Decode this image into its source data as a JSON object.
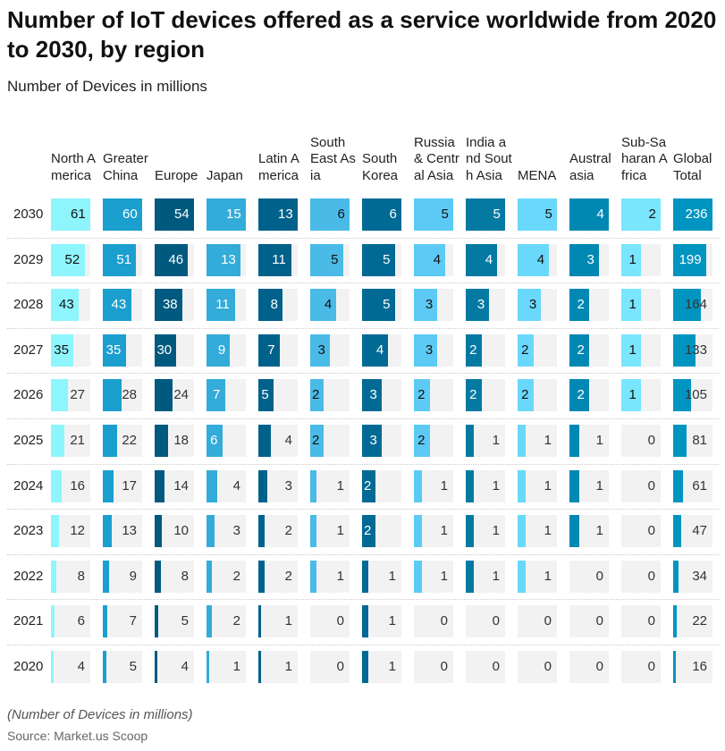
{
  "chart_data": {
    "type": "table",
    "title": "Number of IoT devices offered as a service worldwide from 2020 to 2030, by region",
    "subtitle": "Number of Devices in millions",
    "columns": [
      {
        "name": "North America",
        "color": "#8ef5fd",
        "light": true
      },
      {
        "name": "Greater China",
        "color": "#1a9fcf",
        "light": false
      },
      {
        "name": "Europe",
        "color": "#005a80",
        "light": false
      },
      {
        "name": "Japan",
        "color": "#33acd9",
        "light": false
      },
      {
        "name": "Latin America",
        "color": "#00628b",
        "light": false
      },
      {
        "name": "South East Asia",
        "color": "#4abbe6",
        "light": true
      },
      {
        "name": "South Korea",
        "color": "#006a94",
        "light": false
      },
      {
        "name": "Russia & Central Asia",
        "color": "#5ccaf5",
        "light": true
      },
      {
        "name": "India and South Asia",
        "color": "#047aa2",
        "light": false
      },
      {
        "name": "MENA",
        "color": "#6ad8fa",
        "light": true
      },
      {
        "name": "Australasia",
        "color": "#0088b3",
        "light": false
      },
      {
        "name": "Sub-Saharan Africa",
        "color": "#7ae6fd",
        "light": true
      },
      {
        "name": "Global Total",
        "color": "#0095c1",
        "light": false
      }
    ],
    "rows": [
      {
        "year": "2030",
        "values": [
          61,
          60,
          54,
          15,
          13,
          6,
          6,
          5,
          5,
          5,
          4,
          2,
          236
        ]
      },
      {
        "year": "2029",
        "values": [
          52,
          51,
          46,
          13,
          11,
          5,
          5,
          4,
          4,
          4,
          3,
          1,
          199
        ]
      },
      {
        "year": "2028",
        "values": [
          43,
          43,
          38,
          11,
          8,
          4,
          5,
          3,
          3,
          3,
          2,
          1,
          164
        ]
      },
      {
        "year": "2027",
        "values": [
          35,
          35,
          30,
          9,
          7,
          3,
          4,
          3,
          2,
          2,
          2,
          1,
          133
        ]
      },
      {
        "year": "2026",
        "values": [
          27,
          28,
          24,
          7,
          5,
          2,
          3,
          2,
          2,
          2,
          2,
          1,
          105
        ]
      },
      {
        "year": "2025",
        "values": [
          21,
          22,
          18,
          6,
          4,
          2,
          3,
          2,
          1,
          1,
          1,
          0,
          81
        ]
      },
      {
        "year": "2024",
        "values": [
          16,
          17,
          14,
          4,
          3,
          1,
          2,
          1,
          1,
          1,
          1,
          0,
          61
        ]
      },
      {
        "year": "2023",
        "values": [
          12,
          13,
          10,
          3,
          2,
          1,
          2,
          1,
          1,
          1,
          1,
          0,
          47
        ]
      },
      {
        "year": "2022",
        "values": [
          8,
          9,
          8,
          2,
          2,
          1,
          1,
          1,
          1,
          1,
          0,
          0,
          34
        ]
      },
      {
        "year": "2021",
        "values": [
          6,
          7,
          5,
          2,
          1,
          0,
          1,
          0,
          0,
          0,
          0,
          0,
          22
        ]
      },
      {
        "year": "2020",
        "values": [
          4,
          5,
          4,
          1,
          1,
          0,
          1,
          0,
          0,
          0,
          0,
          0,
          16
        ]
      }
    ],
    "footnote": "(Number of Devices in millions)",
    "source": "Source: Market.us Scoop"
  }
}
